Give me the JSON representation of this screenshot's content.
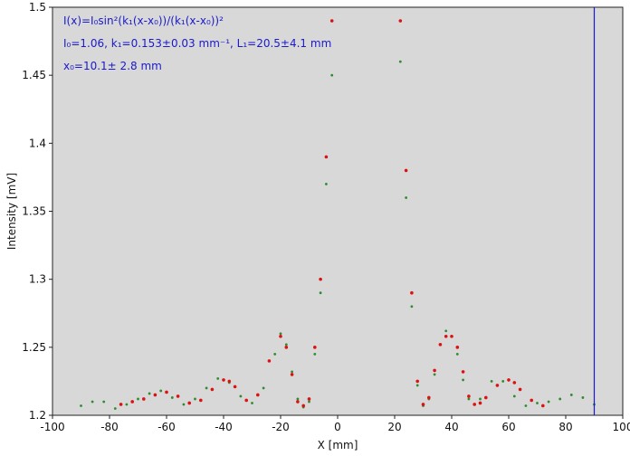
{
  "chart_data": {
    "type": "scatter",
    "title": "",
    "xlabel": "X [mm]",
    "ylabel": "Intensity [mV]",
    "xlim": [
      -100,
      100
    ],
    "ylim": [
      1.2,
      1.5
    ],
    "x_ticks": [
      -100,
      -80,
      -60,
      -40,
      -20,
      0,
      20,
      40,
      60,
      80,
      100
    ],
    "y_ticks": [
      1.2,
      1.25,
      1.3,
      1.35,
      1.4,
      1.45,
      1.5
    ],
    "y_tick_labels": [
      "1.2",
      "1.25",
      "1.3",
      "1.35",
      "1.4",
      "1.45",
      "1.5"
    ],
    "grid": false,
    "background": "#d8d8d8",
    "cursor_x": 90,
    "annotations": [
      {
        "text": "I(x)=I₀sin²(k₁(x-x₀))/(k₁(x-x₀))²"
      },
      {
        "text": "I₀=1.06, k₁=0.153±0.03 mm⁻¹, L₁=20.5±4.1 mm"
      },
      {
        "text": "x₀=10.1± 2.8 mm"
      }
    ],
    "series": [
      {
        "color": "#2e8b2e",
        "marker": "dot",
        "x": [
          -90,
          -86,
          -82,
          -78,
          -74,
          -70,
          -66,
          -62,
          -58,
          -54,
          -50,
          -46,
          -42,
          -38,
          -34,
          -30,
          -26,
          -22,
          -20,
          -18,
          -16,
          -14,
          -12,
          -10,
          -8,
          -6,
          -4,
          -2,
          22,
          24,
          26,
          28,
          30,
          32,
          34,
          36,
          38,
          40,
          42,
          44,
          46,
          48,
          50,
          54,
          58,
          62,
          66,
          70,
          74,
          78,
          82,
          86,
          90
        ],
        "y": [
          1.207,
          1.21,
          1.21,
          1.205,
          1.208,
          1.212,
          1.216,
          1.218,
          1.213,
          1.208,
          1.212,
          1.22,
          1.227,
          1.224,
          1.214,
          1.209,
          1.22,
          1.245,
          1.26,
          1.252,
          1.232,
          1.212,
          1.206,
          1.21,
          1.245,
          1.29,
          1.37,
          1.45,
          1.46,
          1.36,
          1.28,
          1.222,
          1.207,
          1.212,
          1.23,
          1.252,
          1.262,
          1.258,
          1.245,
          1.226,
          1.212,
          1.208,
          1.212,
          1.225,
          1.225,
          1.214,
          1.207,
          1.209,
          1.21,
          1.212,
          1.215,
          1.213,
          1.208
        ]
      },
      {
        "color": "#dd1111",
        "marker": "dot",
        "x": [
          -76,
          -72,
          -68,
          -64,
          -60,
          -56,
          -52,
          -48,
          -44,
          -40,
          -38,
          -36,
          -32,
          -28,
          -24,
          -20,
          -18,
          -16,
          -14,
          -12,
          -10,
          -8,
          -6,
          -4,
          -2,
          22,
          24,
          26,
          28,
          30,
          32,
          34,
          36,
          38,
          40,
          42,
          44,
          46,
          48,
          50,
          52,
          56,
          60,
          62,
          64,
          68,
          72
        ],
        "y": [
          1.208,
          1.21,
          1.212,
          1.215,
          1.217,
          1.214,
          1.209,
          1.211,
          1.219,
          1.226,
          1.225,
          1.221,
          1.211,
          1.215,
          1.24,
          1.258,
          1.25,
          1.23,
          1.21,
          1.207,
          1.212,
          1.25,
          1.3,
          1.39,
          1.49,
          1.49,
          1.38,
          1.29,
          1.225,
          1.208,
          1.213,
          1.233,
          1.252,
          1.258,
          1.258,
          1.25,
          1.232,
          1.214,
          1.208,
          1.209,
          1.213,
          1.222,
          1.226,
          1.224,
          1.219,
          1.211,
          1.207
        ]
      }
    ]
  }
}
